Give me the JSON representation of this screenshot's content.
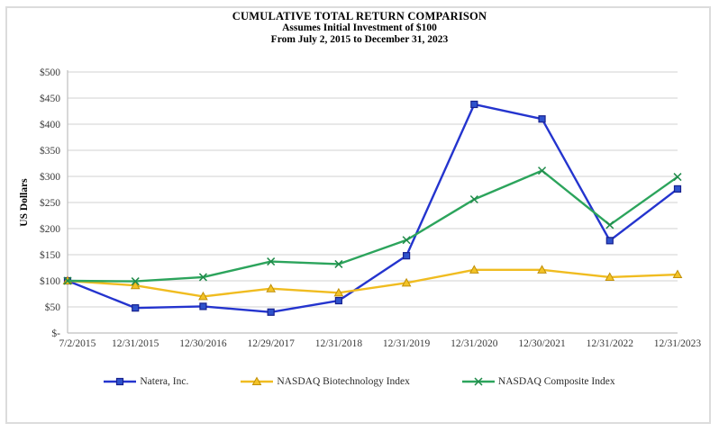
{
  "title": {
    "line1": "CUMULATIVE TOTAL RETURN COMPARISON",
    "line2": "Assumes Initial Investment of $100",
    "line3": "From July 2, 2015 to December 31, 2023"
  },
  "chart_data": {
    "type": "line",
    "title": "CUMULATIVE TOTAL RETURN COMPARISON",
    "subtitle": "Assumes Initial Investment of $100",
    "subtitle2": "From July 2, 2015 to December 31, 2023",
    "xlabel": "",
    "ylabel": "US Dollars",
    "ylim": [
      0,
      500
    ],
    "grid": true,
    "legend_position": "bottom",
    "y_ticks": [
      {
        "value": 0,
        "label": "$-"
      },
      {
        "value": 50,
        "label": "$50"
      },
      {
        "value": 100,
        "label": "$100"
      },
      {
        "value": 150,
        "label": "$150"
      },
      {
        "value": 200,
        "label": "$200"
      },
      {
        "value": 250,
        "label": "$250"
      },
      {
        "value": 300,
        "label": "$300"
      },
      {
        "value": 350,
        "label": "$350"
      },
      {
        "value": 400,
        "label": "$400"
      },
      {
        "value": 450,
        "label": "$450"
      },
      {
        "value": 500,
        "label": "$500"
      }
    ],
    "categories": [
      "7/2/2015",
      "12/31/2015",
      "12/30/2016",
      "12/29/2017",
      "12/31/2018",
      "12/31/2019",
      "12/31/2020",
      "12/30/2021",
      "12/31/2022",
      "12/31/2023"
    ],
    "series": [
      {
        "name": "Natera, Inc.",
        "marker": "square",
        "color": "#2434CE",
        "marker_fill": "#2F52CC",
        "marker_stroke": "#17218F",
        "values": [
          100,
          48,
          51,
          40,
          62,
          148,
          438,
          410,
          177,
          276
        ]
      },
      {
        "name": "NASDAQ Biotechnology Index",
        "marker": "triangle",
        "color": "#F0BC20",
        "marker_fill": "#F3C327",
        "marker_stroke": "#C19009",
        "values": [
          100,
          91,
          70,
          85,
          77,
          96,
          121,
          121,
          107,
          112
        ]
      },
      {
        "name": "NASDAQ Composite Index",
        "marker": "x",
        "color": "#2CA45C",
        "marker_fill": "#2CA45C",
        "marker_stroke": "#1F8A49",
        "values": [
          100,
          99,
          107,
          137,
          132,
          178,
          256,
          311,
          207,
          299
        ]
      }
    ],
    "colors": {
      "gridline": "#D9D9D9",
      "axis": "#BFBFBF",
      "tick_text": "#3A3A3A"
    }
  }
}
